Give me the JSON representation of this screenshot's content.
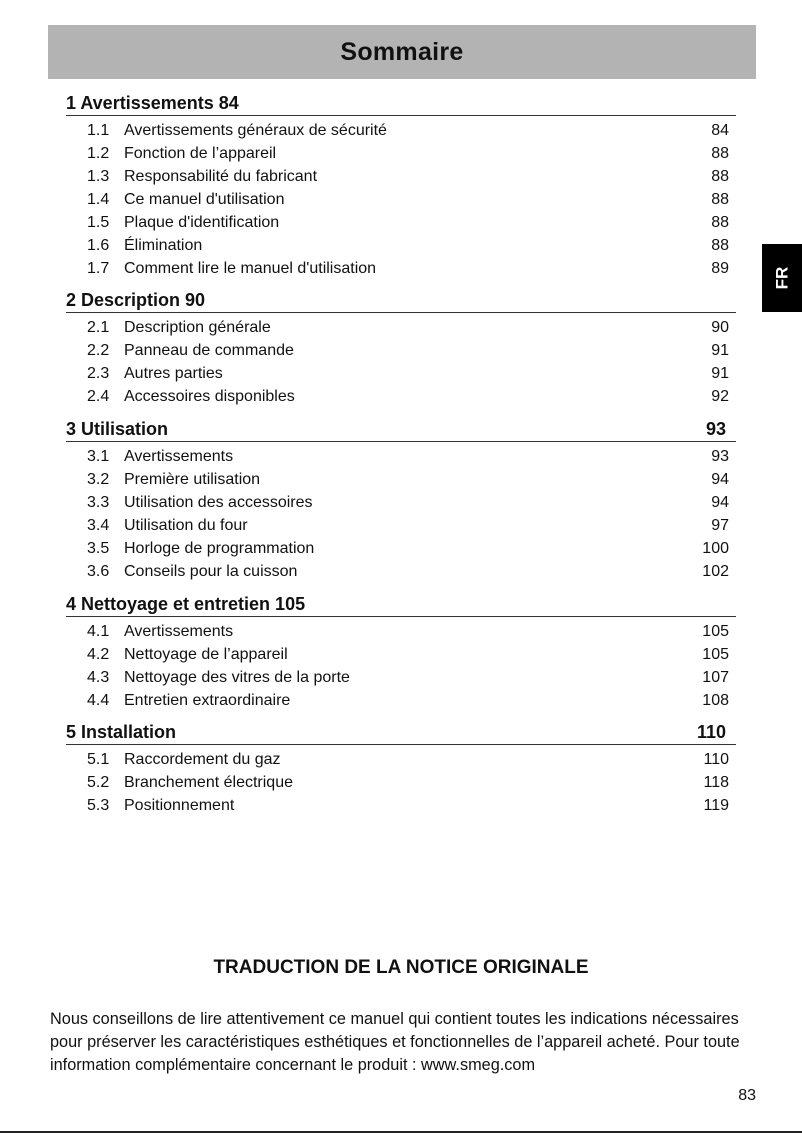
{
  "title": "Sommaire",
  "lang_tab": "FR",
  "sections": [
    {
      "heading": "1 Avertissements 84",
      "page": "",
      "items": [
        {
          "num": "1.1",
          "label": "Avertissements généraux de sécurité",
          "page": "84"
        },
        {
          "num": "1.2",
          "label": "Fonction de l’appareil",
          "page": "88"
        },
        {
          "num": "1.3",
          "label": "Responsabilité du fabricant",
          "page": "88"
        },
        {
          "num": "1.4",
          "label": "Ce manuel d'utilisation",
          "page": "88"
        },
        {
          "num": "1.5",
          "label": "Plaque d'identification",
          "page": "88"
        },
        {
          "num": "1.6",
          "label": "Élimination",
          "page": "88"
        },
        {
          "num": "1.7",
          "label": "Comment lire le manuel d'utilisation",
          "page": "89"
        }
      ]
    },
    {
      "heading": "2 Description 90",
      "page": "",
      "items": [
        {
          "num": "2.1",
          "label": "Description générale",
          "page": "90"
        },
        {
          "num": "2.2",
          "label": "Panneau de commande",
          "page": "91"
        },
        {
          "num": "2.3",
          "label": "Autres parties",
          "page": "91"
        },
        {
          "num": "2.4",
          "label": "Accessoires disponibles",
          "page": "92"
        }
      ]
    },
    {
      "heading": "3 Utilisation",
      "page": "93",
      "items": [
        {
          "num": "3.1",
          "label": "Avertissements",
          "page": "93"
        },
        {
          "num": "3.2",
          "label": "Première utilisation",
          "page": "94"
        },
        {
          "num": "3.3",
          "label": "Utilisation des accessoires",
          "page": "94"
        },
        {
          "num": "3.4",
          "label": "Utilisation du four",
          "page": "97"
        },
        {
          "num": "3.5",
          "label": "Horloge de programmation",
          "page": "100"
        },
        {
          "num": "3.6",
          "label": "Conseils pour la cuisson",
          "page": "102"
        }
      ]
    },
    {
      "heading": "4 Nettoyage et entretien 105",
      "page": "",
      "items": [
        {
          "num": "4.1",
          "label": "Avertissements",
          "page": "105"
        },
        {
          "num": "4.2",
          "label": "Nettoyage de l’appareil",
          "page": "105"
        },
        {
          "num": "4.3",
          "label": "Nettoyage des vitres de la porte",
          "page": "107"
        },
        {
          "num": "4.4",
          "label": "Entretien extraordinaire",
          "page": "108"
        }
      ]
    },
    {
      "heading": "5 Installation",
      "page": "110",
      "items": [
        {
          "num": "5.1",
          "label": "Raccordement du gaz",
          "page": "110"
        },
        {
          "num": "5.2",
          "label": "Branchement électrique",
          "page": "118"
        },
        {
          "num": "5.3",
          "label": "Positionnement",
          "page": "119"
        }
      ]
    }
  ],
  "notice_title": "TRADUCTION DE LA NOTICE ORIGINALE",
  "intro_text": "Nous conseillons de lire attentivement ce manuel qui contient toutes les indications nécessaires pour préserver les caractéristiques esthétiques et fonctionnelles de l’appareil acheté. Pour toute information complémentaire concernant le produit : www.smeg.com",
  "page_number": "83"
}
